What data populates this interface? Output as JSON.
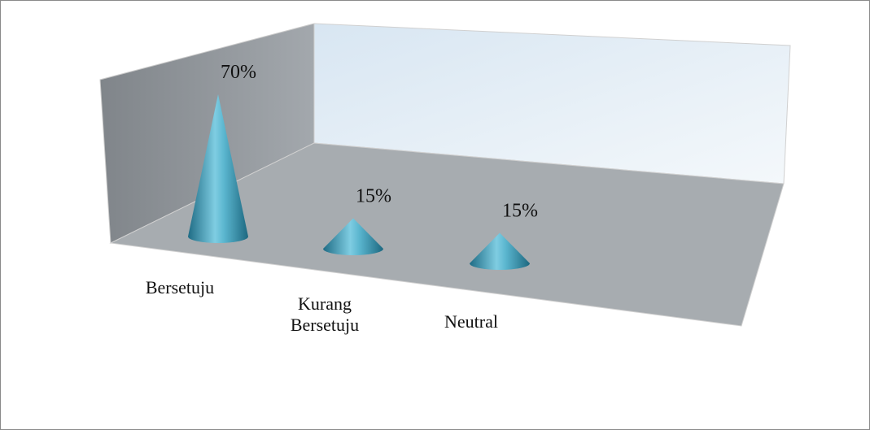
{
  "chart_data": {
    "type": "cone",
    "categories": [
      "Bersetuju",
      "Kurang Bersetuju",
      "Neutral"
    ],
    "values": [
      70,
      15,
      15
    ],
    "value_labels": [
      "70%",
      "15%",
      "15%"
    ],
    "color": "#3a9bb8"
  }
}
